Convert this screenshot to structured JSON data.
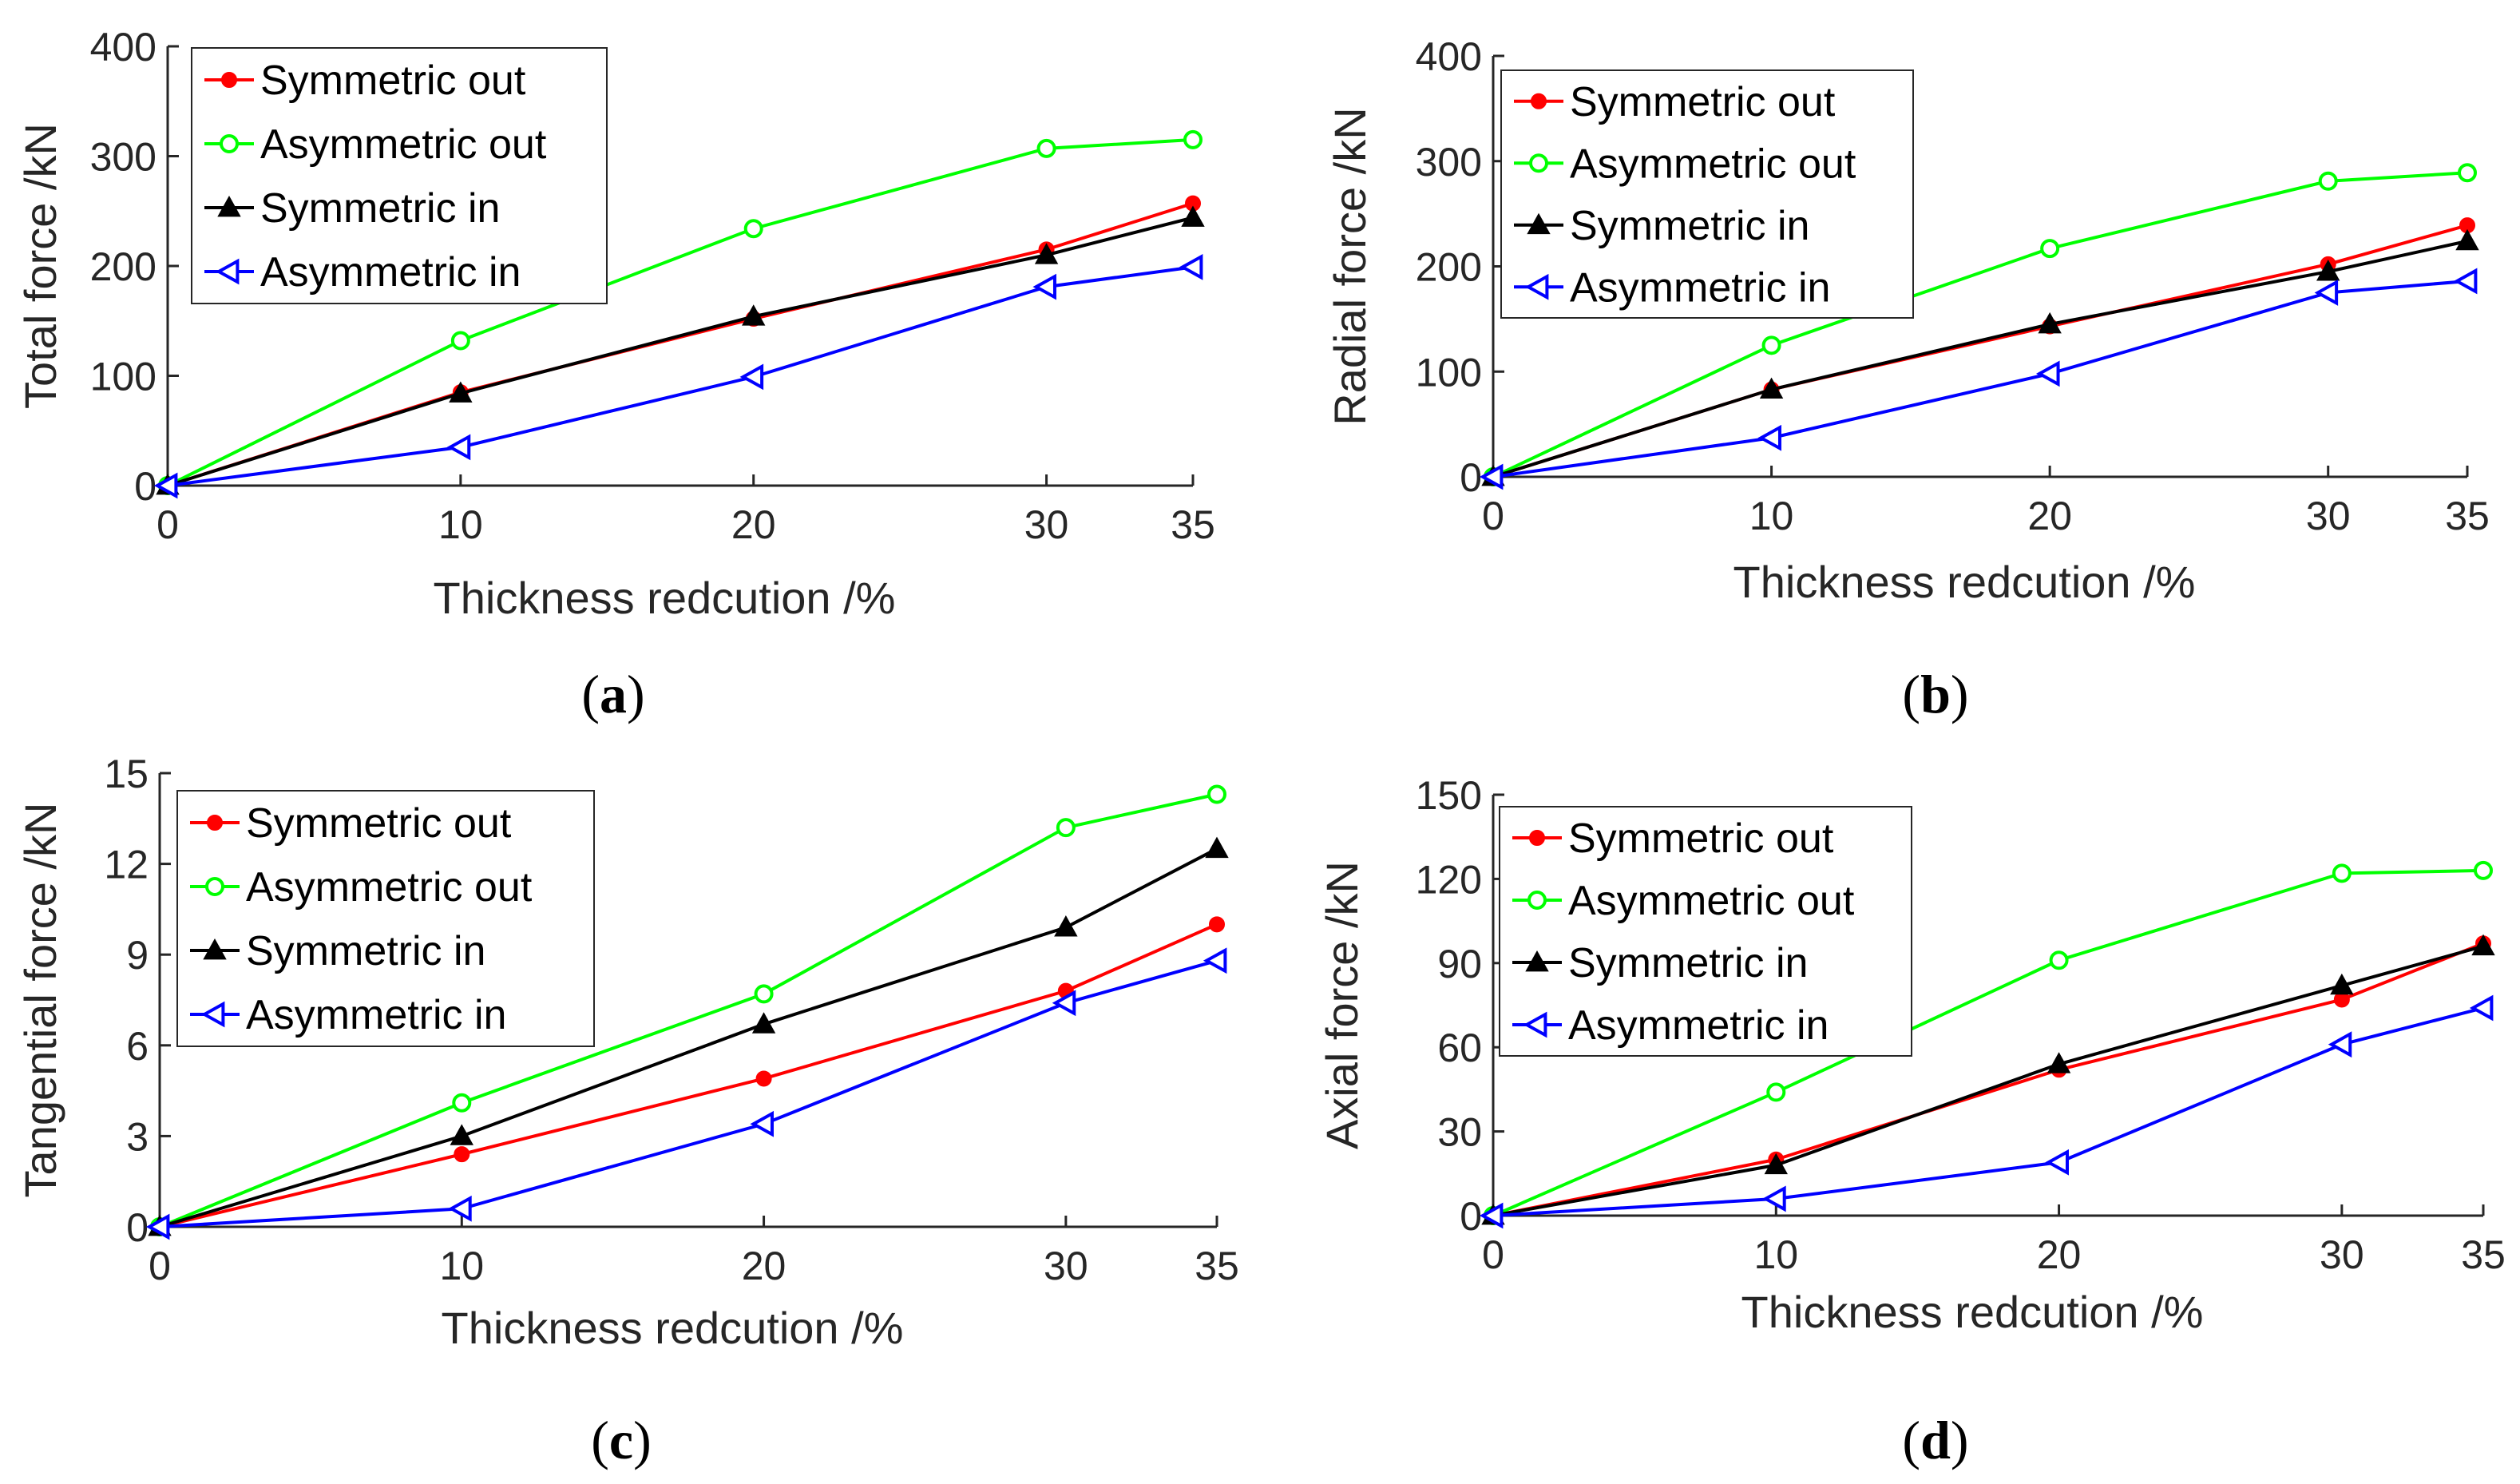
{
  "chart_data": [
    {
      "type": "line",
      "caption": "a",
      "ylabel": "Total force /kN",
      "xlabel": "Thickness redcution /%",
      "xlim": [
        0,
        35
      ],
      "ylim": [
        0,
        400
      ],
      "xticks": [
        0,
        10,
        20,
        30,
        35
      ],
      "yticks": [
        0,
        100,
        200,
        300,
        400
      ],
      "x": [
        0,
        10,
        20,
        30,
        35
      ],
      "series": [
        {
          "name": "Symmetric out",
          "color": "#ff0000",
          "marker": "dot",
          "values": [
            0,
            85,
            152,
            215,
            257
          ]
        },
        {
          "name": "Asymmetric out",
          "color": "#00ff00",
          "marker": "circle",
          "values": [
            0,
            132,
            234,
            307,
            315
          ]
        },
        {
          "name": "Symmetric in",
          "color": "#000000",
          "marker": "triangle-up",
          "values": [
            0,
            84,
            154,
            210,
            244
          ]
        },
        {
          "name": "Asymmetric in",
          "color": "#0000ff",
          "marker": "triangle-left",
          "values": [
            0,
            35,
            99,
            181,
            199
          ]
        }
      ]
    },
    {
      "type": "line",
      "caption": "b",
      "ylabel": "Radial force /kN",
      "xlabel": "Thickness redcution /%",
      "xlim": [
        0,
        35
      ],
      "ylim": [
        0,
        400
      ],
      "xticks": [
        0,
        10,
        20,
        30,
        35
      ],
      "yticks": [
        0,
        100,
        200,
        300,
        400
      ],
      "x": [
        0,
        10,
        20,
        30,
        35
      ],
      "series": [
        {
          "name": "Symmetric out",
          "color": "#ff0000",
          "marker": "dot",
          "values": [
            0,
            83,
            143,
            202,
            239
          ]
        },
        {
          "name": "Asymmetric out",
          "color": "#00ff00",
          "marker": "circle",
          "values": [
            0,
            125,
            217,
            281,
            289
          ]
        },
        {
          "name": "Symmetric in",
          "color": "#000000",
          "marker": "triangle-up",
          "values": [
            0,
            83,
            145,
            195,
            224
          ]
        },
        {
          "name": "Asymmetric in",
          "color": "#0000ff",
          "marker": "triangle-left",
          "values": [
            0,
            37,
            98,
            175,
            186
          ]
        }
      ]
    },
    {
      "type": "line",
      "caption": "c",
      "ylabel": "Tangential force /kN",
      "xlabel": "Thickness redcution /%",
      "xlim": [
        0,
        35
      ],
      "ylim": [
        0,
        15
      ],
      "xticks": [
        0,
        10,
        20,
        30,
        35
      ],
      "yticks": [
        0,
        3,
        6,
        9,
        12,
        15
      ],
      "x": [
        0,
        10,
        20,
        30,
        35
      ],
      "series": [
        {
          "name": "Symmetric out",
          "color": "#ff0000",
          "marker": "dot",
          "values": [
            0,
            2.4,
            4.9,
            7.8,
            10.0
          ]
        },
        {
          "name": "Asymmetric out",
          "color": "#00ff00",
          "marker": "circle",
          "values": [
            0,
            4.1,
            7.7,
            13.2,
            14.3
          ]
        },
        {
          "name": "Symmetric in",
          "color": "#000000",
          "marker": "triangle-up",
          "values": [
            0,
            3.0,
            6.7,
            9.9,
            12.5
          ]
        },
        {
          "name": "Asymmetric in",
          "color": "#0000ff",
          "marker": "triangle-left",
          "values": [
            0,
            0.6,
            3.4,
            7.4,
            8.8
          ]
        }
      ]
    },
    {
      "type": "line",
      "caption": "d",
      "ylabel": "Axial force /kN",
      "xlabel": "Thickness redcution /%",
      "xlim": [
        0,
        35
      ],
      "ylim": [
        0,
        150
      ],
      "xticks": [
        0,
        10,
        20,
        30,
        35
      ],
      "yticks": [
        0,
        30,
        60,
        90,
        120,
        150
      ],
      "x": [
        0,
        10,
        20,
        30,
        35
      ],
      "series": [
        {
          "name": "Symmetric out",
          "color": "#ff0000",
          "marker": "dot",
          "values": [
            0,
            20,
            52,
            77,
            97
          ]
        },
        {
          "name": "Asymmetric out",
          "color": "#00ff00",
          "marker": "circle",
          "values": [
            0,
            44,
            91,
            122,
            123
          ]
        },
        {
          "name": "Symmetric in",
          "color": "#000000",
          "marker": "triangle-up",
          "values": [
            0,
            18,
            54,
            82,
            96
          ]
        },
        {
          "name": "Asymmetric in",
          "color": "#0000ff",
          "marker": "triangle-left",
          "values": [
            0,
            6,
            19,
            61,
            74
          ]
        }
      ]
    }
  ]
}
